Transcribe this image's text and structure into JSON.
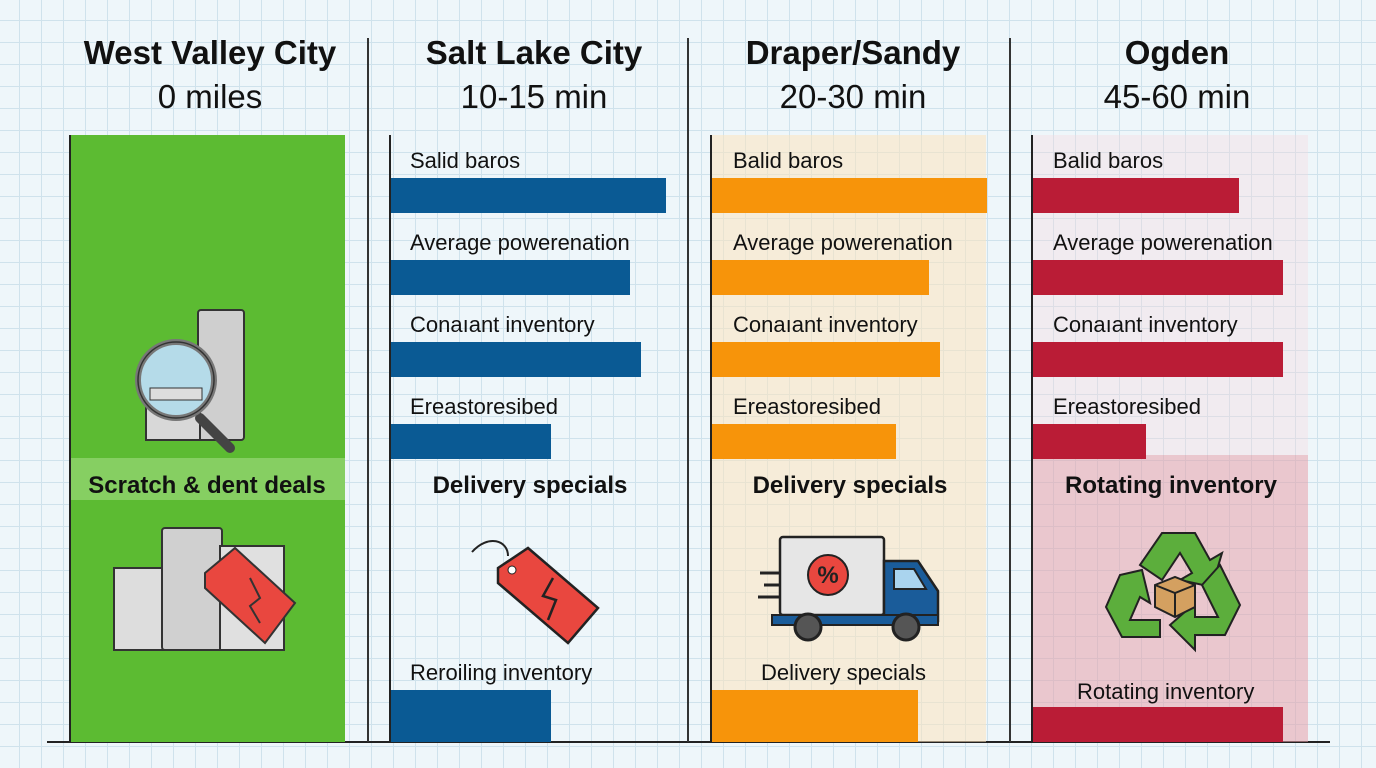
{
  "colors": {
    "green": "#5cbb32",
    "blue": "#0a5a94",
    "orange": "#f7940a",
    "red": "#ba1c36"
  },
  "columns": [
    {
      "title": "West Valley City",
      "subtitle": "0 miles",
      "feature": "Scratch & dent deals",
      "icons": [
        "magnifier-appliance-icon",
        "appliances-tag-icon"
      ]
    },
    {
      "title": "Salt Lake City",
      "subtitle": "10-15 min",
      "feature": "Delivery specials",
      "bottom_label": "Reroiling inventory",
      "icons": [
        "broken-price-tag-icon"
      ]
    },
    {
      "title": "Draper/Sandy",
      "subtitle": "20-30 min",
      "feature": "Delivery specials",
      "bottom_label": "Delivery specials",
      "icons": [
        "delivery-truck-icon"
      ]
    },
    {
      "title": "Ogden",
      "subtitle": "45-60 min",
      "feature": "Rotating inventory",
      "bottom_label": "Rotating inventory",
      "icons": [
        "recycle-box-icon"
      ]
    }
  ],
  "chart_data": {
    "type": "bar",
    "orientation": "horizontal",
    "categories": [
      "Salid baros",
      "Average powerenation",
      "Conaıant inventory",
      "Ereastoresibed"
    ],
    "categories_col3": [
      "Balid baros",
      "Average powerenation",
      "Conaıant inventory",
      "Ereastoresibed"
    ],
    "categories_col4": [
      "Balid baros",
      "Average powerenation",
      "Conaıant inventory",
      "Ereastoresibed"
    ],
    "series": [
      {
        "column": "Salt Lake City",
        "color": "#0a5a94",
        "values": [
          1.0,
          0.87,
          0.91,
          0.58
        ],
        "bottom_value": 0.58
      },
      {
        "column": "Draper/Sandy",
        "color": "#f7940a",
        "values": [
          1.0,
          0.79,
          0.83,
          0.67
        ],
        "bottom_value": 0.75
      },
      {
        "column": "Ogden",
        "color": "#ba1c36",
        "values": [
          0.75,
          0.91,
          0.91,
          0.41
        ],
        "bottom_value": 0.91
      }
    ],
    "xlim": [
      0,
      1
    ],
    "grid": true
  }
}
